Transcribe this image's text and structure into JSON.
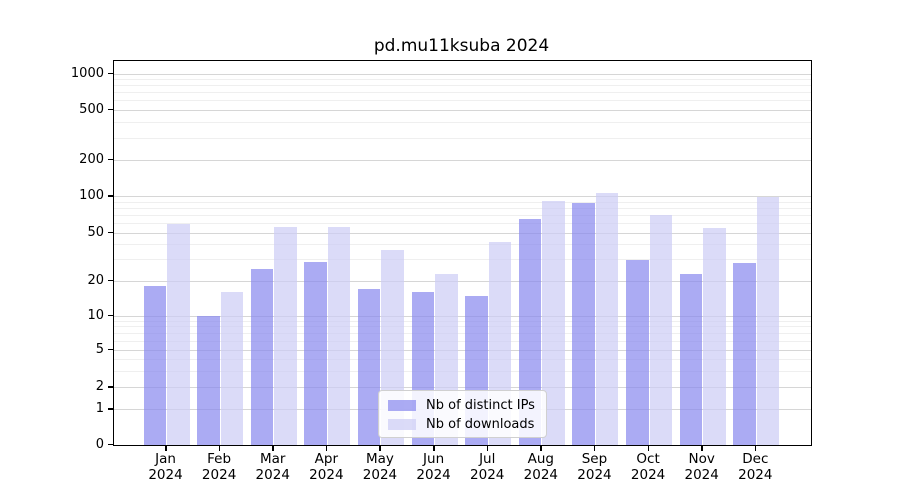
{
  "title": "pd.mu11ksuba 2024",
  "chart_data": {
    "type": "bar",
    "title": "pd.mu11ksuba 2024",
    "categories": [
      "Jan 2024",
      "Feb 2024",
      "Mar 2024",
      "Apr 2024",
      "May 2024",
      "Jun 2024",
      "Jul 2024",
      "Aug 2024",
      "Sep 2024",
      "Oct 2024",
      "Nov 2024",
      "Dec 2024"
    ],
    "series": [
      {
        "name": "Nb of distinct IPs",
        "color": "#8888ee",
        "values": [
          18,
          10,
          25,
          29,
          17,
          16,
          15,
          65,
          88,
          30,
          23,
          28
        ]
      },
      {
        "name": "Nb of downloads",
        "color": "#ccccf5",
        "values": [
          60,
          16,
          56,
          56,
          36,
          23,
          42,
          92,
          108,
          71,
          55,
          100
        ]
      }
    ],
    "bar_alpha": 0.7,
    "yscale": "symlog",
    "yticks": [
      0,
      1,
      2,
      5,
      10,
      20,
      50,
      100,
      200,
      500,
      1000
    ],
    "ylim": [
      0,
      1300
    ],
    "xlabel": "",
    "ylabel": "",
    "grid": true,
    "legend_position": "lower center"
  }
}
